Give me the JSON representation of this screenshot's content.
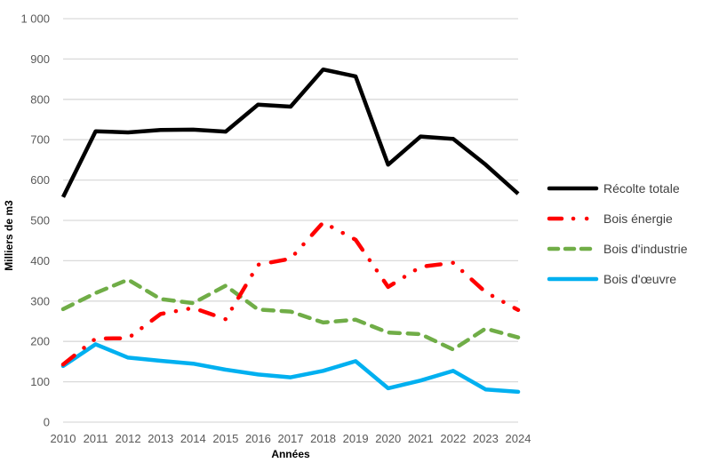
{
  "chart_data": {
    "type": "line",
    "title": "",
    "xlabel": "Années",
    "ylabel": "Milliers de m3",
    "ylim": [
      0,
      1000
    ],
    "grid": true,
    "legend_position": "right",
    "x": [
      "2010",
      "2011",
      "2012",
      "2013",
      "2014",
      "2015",
      "2016",
      "2017",
      "2018",
      "2019",
      "2020",
      "2021",
      "2022",
      "2023",
      "2024"
    ],
    "yticks": [
      {
        "value": 0,
        "label": "0"
      },
      {
        "value": 100,
        "label": "100"
      },
      {
        "value": 200,
        "label": "200"
      },
      {
        "value": 300,
        "label": "300"
      },
      {
        "value": 400,
        "label": "400"
      },
      {
        "value": 500,
        "label": "500"
      },
      {
        "value": 600,
        "label": "600"
      },
      {
        "value": 700,
        "label": "700"
      },
      {
        "value": 800,
        "label": "800"
      },
      {
        "value": 900,
        "label": "900"
      },
      {
        "value": 1000,
        "label": "1 000"
      }
    ],
    "series": [
      {
        "name": "Récolte totale",
        "color": "#000000",
        "style": "solid",
        "values": [
          558,
          721,
          718,
          724,
          725,
          720,
          787,
          782,
          874,
          857,
          638,
          708,
          702,
          638,
          566
        ]
      },
      {
        "name": "Bois énergie",
        "color": "#FF0000",
        "style": "dash-dot-dot",
        "values": [
          143,
          207,
          208,
          268,
          283,
          255,
          390,
          405,
          495,
          452,
          335,
          385,
          395,
          322,
          278
        ]
      },
      {
        "name": "Bois d'industrie",
        "color": "#70AD47",
        "style": "dash",
        "values": [
          280,
          320,
          353,
          305,
          295,
          338,
          279,
          274,
          247,
          254,
          222,
          218,
          180,
          232,
          210
        ]
      },
      {
        "name": "Bois d'œuvre",
        "color": "#00B0F0",
        "style": "solid",
        "values": [
          139,
          193,
          160,
          152,
          145,
          130,
          118,
          111,
          127,
          151,
          84,
          103,
          127,
          81,
          75
        ]
      }
    ]
  }
}
